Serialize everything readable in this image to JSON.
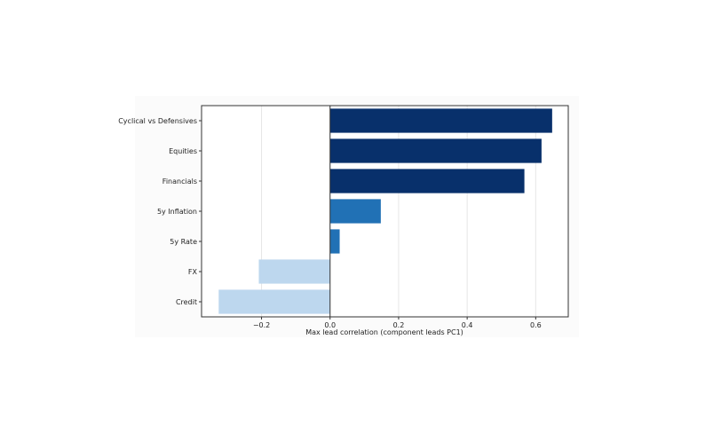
{
  "chart_data": {
    "type": "bar",
    "orientation": "horizontal",
    "categories": [
      "Cyclical vs Defensives",
      "Equities",
      "Financials",
      "5y Inflation",
      "5y Rate",
      "FX",
      "Credit"
    ],
    "values": [
      0.648,
      0.617,
      0.567,
      0.148,
      0.028,
      -0.208,
      -0.325
    ],
    "bar_colors": [
      "#08306b",
      "#08306b",
      "#08306b",
      "#2171b5",
      "#2171b5",
      "#bdd7ee",
      "#bdd7ee"
    ],
    "xlabel": "Max lead correlation (component leads PC1)",
    "ylabel": "",
    "xlim": [
      -0.375,
      0.695
    ],
    "xticks": [
      -0.2,
      0.0,
      0.2,
      0.4,
      0.6
    ],
    "xtick_labels": [
      "−0.2",
      "0.0",
      "0.2",
      "0.4",
      "0.6"
    ],
    "grid": "x",
    "zero_line": true
  }
}
